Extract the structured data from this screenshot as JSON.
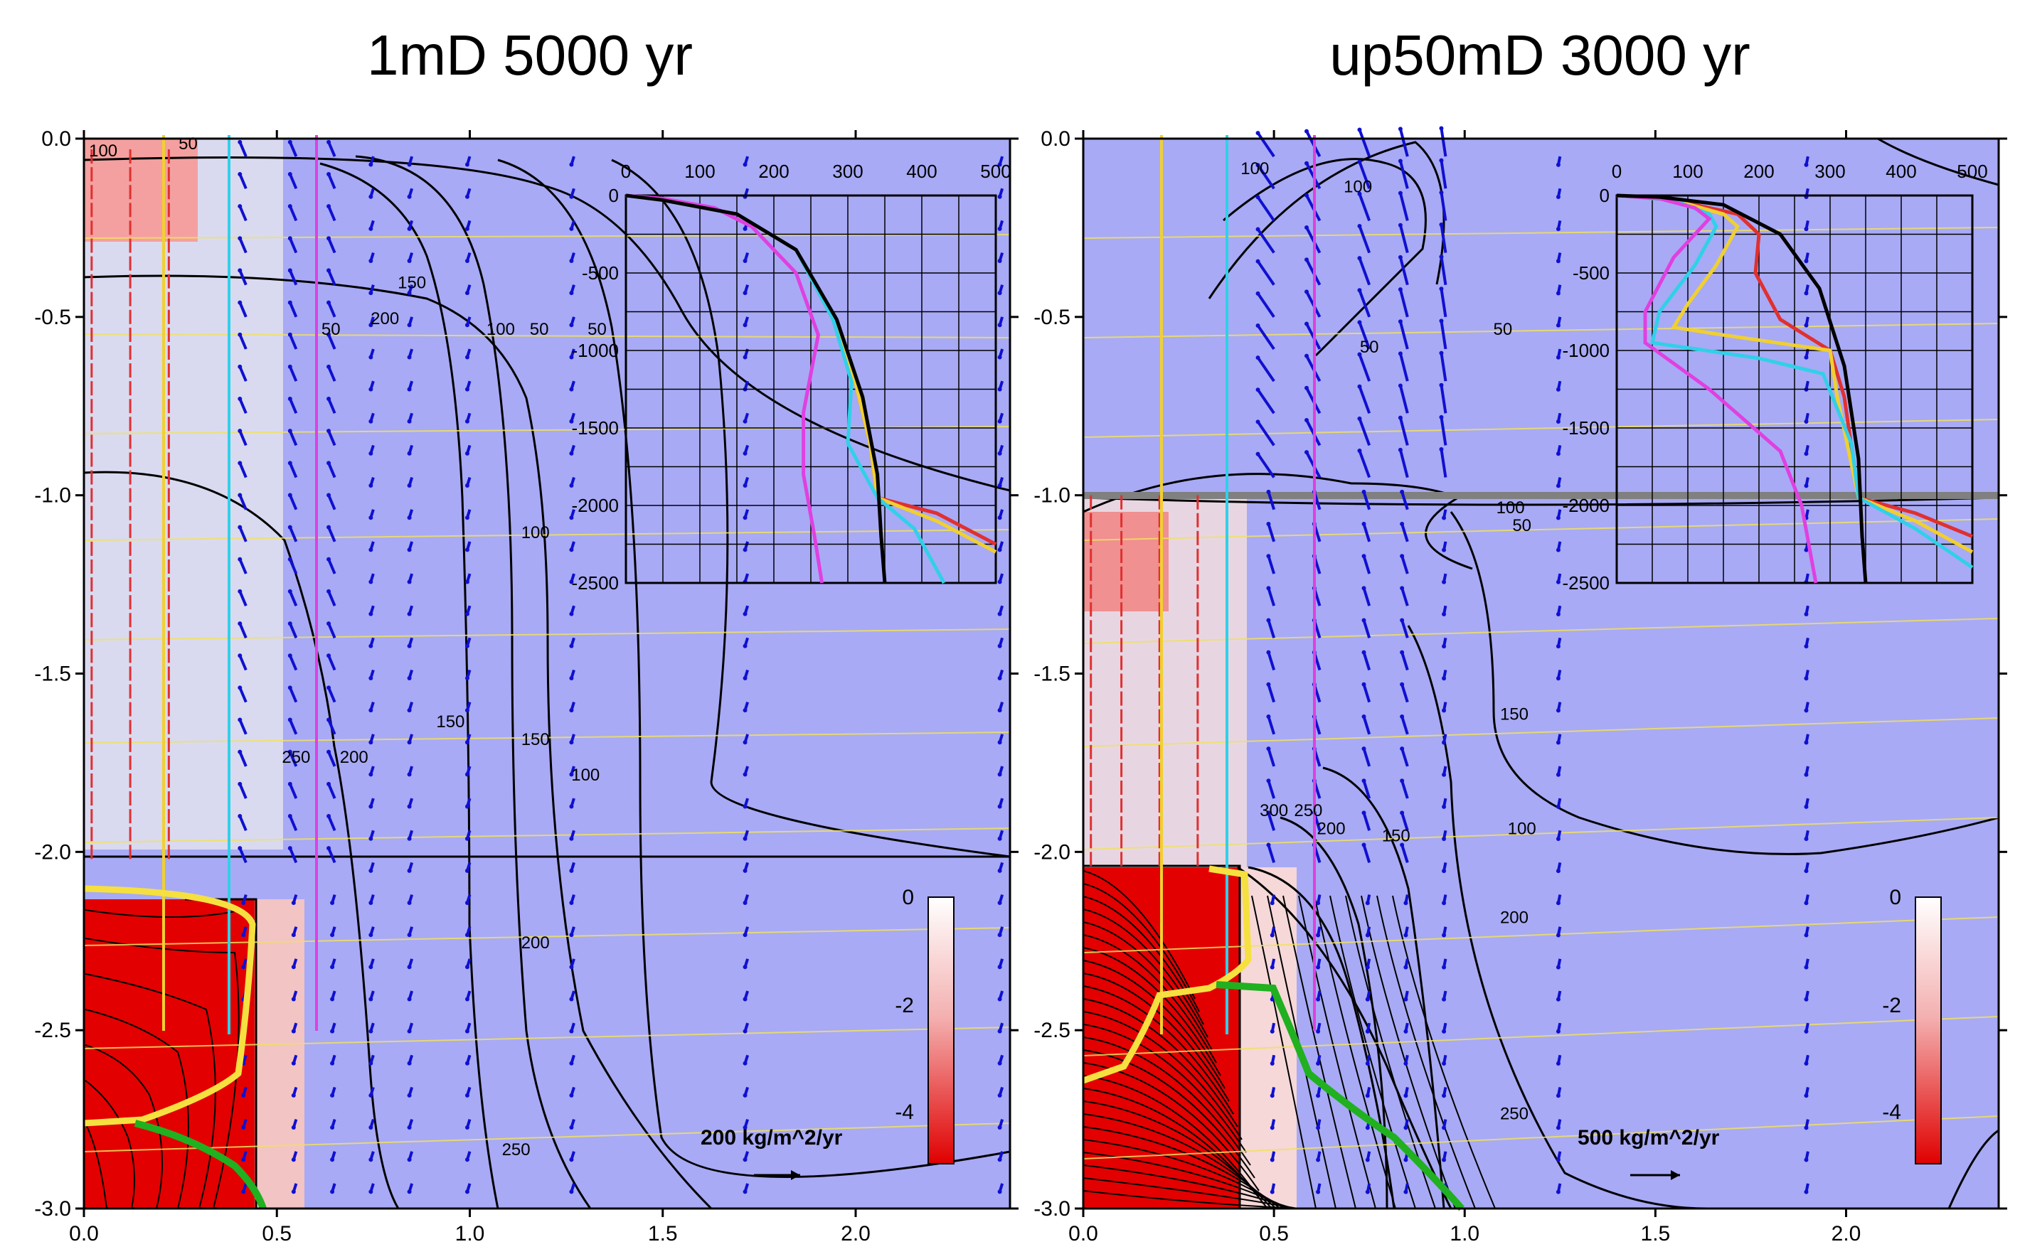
{
  "chart_data": [
    {
      "type": "heatmap",
      "title": "1mD 5000 yr",
      "xlim": [
        0,
        2.4
      ],
      "ylim": [
        -3.0,
        0.0
      ],
      "xticks": [
        "0.0",
        "0.5",
        "1.0",
        "1.5",
        "2.0"
      ],
      "yticks": [
        "0.0",
        "-0.5",
        "-1.0",
        "-1.5",
        "-2.0",
        "-2.5",
        "-3.0"
      ],
      "contour_labels": [
        {
          "text": "100",
          "x": 0.05,
          "y": -0.05
        },
        {
          "text": "50",
          "x": 0.27,
          "y": -0.03
        },
        {
          "text": "50",
          "x": 0.64,
          "y": -0.55
        },
        {
          "text": "150",
          "x": 0.85,
          "y": -0.42
        },
        {
          "text": "200",
          "x": 0.78,
          "y": -0.52
        },
        {
          "text": "100",
          "x": 1.08,
          "y": -0.55
        },
        {
          "text": "50",
          "x": 1.18,
          "y": -0.55
        },
        {
          "text": "50",
          "x": 1.33,
          "y": -0.55
        },
        {
          "text": "100",
          "x": 1.17,
          "y": -1.12
        },
        {
          "text": "150",
          "x": 0.95,
          "y": -1.65
        },
        {
          "text": "150",
          "x": 1.17,
          "y": -1.7
        },
        {
          "text": "100",
          "x": 1.3,
          "y": -1.8
        },
        {
          "text": "200",
          "x": 0.7,
          "y": -1.75
        },
        {
          "text": "250",
          "x": 0.55,
          "y": -1.75
        },
        {
          "text": "200",
          "x": 1.17,
          "y": -2.27
        },
        {
          "text": "250",
          "x": 1.12,
          "y": -2.85
        }
      ],
      "colorbar": {
        "ticks": [
          "0",
          "-2",
          "-4"
        ],
        "range": [
          -5,
          0
        ]
      },
      "vector_scale_label": "200 kg/m^2/yr",
      "inset": {
        "xticks": [
          "0",
          "100",
          "200",
          "300",
          "400",
          "500"
        ],
        "yticks": [
          "0",
          "-500",
          "-1000",
          "-1500",
          "-2000",
          "-2500"
        ],
        "xlim": [
          0,
          500
        ],
        "ylim": [
          -2500,
          0
        ],
        "series": [
          {
            "name": "red",
            "color": "#e03030",
            "points": [
              [
                0,
                0
              ],
              [
                50,
                -30
              ],
              [
                150,
                -120
              ],
              [
                230,
                -350
              ],
              [
                280,
                -800
              ],
              [
                310,
                -1200
              ],
              [
                330,
                -1600
              ],
              [
                340,
                -1950
              ],
              [
                420,
                -2050
              ],
              [
                500,
                -2250
              ]
            ]
          },
          {
            "name": "yellow",
            "color": "#f0d030",
            "points": [
              [
                0,
                0
              ],
              [
                50,
                -30
              ],
              [
                150,
                -120
              ],
              [
                230,
                -350
              ],
              [
                280,
                -800
              ],
              [
                310,
                -1200
              ],
              [
                330,
                -1600
              ],
              [
                340,
                -1950
              ],
              [
                420,
                -2100
              ],
              [
                500,
                -2300
              ]
            ]
          },
          {
            "name": "cyan",
            "color": "#30d0e8",
            "points": [
              [
                0,
                0
              ],
              [
                50,
                -30
              ],
              [
                150,
                -120
              ],
              [
                230,
                -350
              ],
              [
                280,
                -800
              ],
              [
                305,
                -1200
              ],
              [
                300,
                -1600
              ],
              [
                340,
                -1950
              ],
              [
                390,
                -2150
              ],
              [
                430,
                -2500
              ]
            ]
          },
          {
            "name": "magenta",
            "color": "#e040e0",
            "points": [
              [
                0,
                0
              ],
              [
                50,
                -20
              ],
              [
                120,
                -80
              ],
              [
                170,
                -200
              ],
              [
                230,
                -500
              ],
              [
                260,
                -900
              ],
              [
                240,
                -1400
              ],
              [
                240,
                -1800
              ],
              [
                255,
                -2200
              ],
              [
                265,
                -2500
              ]
            ]
          },
          {
            "name": "black",
            "color": "#000000",
            "points": [
              [
                0,
                0
              ],
              [
                50,
                -30
              ],
              [
                150,
                -120
              ],
              [
                230,
                -350
              ],
              [
                285,
                -800
              ],
              [
                320,
                -1300
              ],
              [
                340,
                -1800
              ],
              [
                345,
                -2200
              ],
              [
                350,
                -2500
              ]
            ]
          }
        ]
      }
    },
    {
      "type": "heatmap",
      "title": "up50mD 3000 yr",
      "xlim": [
        0,
        2.4
      ],
      "ylim": [
        -3.0,
        0.0
      ],
      "xticks": [
        "0.0",
        "0.5",
        "1.0",
        "1.5",
        "2.0"
      ],
      "yticks": [
        "0.0",
        "-0.5",
        "-1.0",
        "-1.5",
        "-2.0",
        "-2.5",
        "-3.0"
      ],
      "contour_labels": [
        {
          "text": "100",
          "x": 0.45,
          "y": -0.1
        },
        {
          "text": "100",
          "x": 0.72,
          "y": -0.15
        },
        {
          "text": "50",
          "x": 1.1,
          "y": -0.55
        },
        {
          "text": "50",
          "x": 0.75,
          "y": -0.6
        },
        {
          "text": "100",
          "x": 1.12,
          "y": -1.05
        },
        {
          "text": "50",
          "x": 1.15,
          "y": -1.1
        },
        {
          "text": "150",
          "x": 1.13,
          "y": -1.63
        },
        {
          "text": "100",
          "x": 1.15,
          "y": -1.95
        },
        {
          "text": "200",
          "x": 1.13,
          "y": -2.2
        },
        {
          "text": "250",
          "x": 1.13,
          "y": -2.75
        },
        {
          "text": "150",
          "x": 0.82,
          "y": -1.97
        },
        {
          "text": "200",
          "x": 0.65,
          "y": -1.95
        },
        {
          "text": "250",
          "x": 0.59,
          "y": -1.9
        },
        {
          "text": "300",
          "x": 0.5,
          "y": -1.9
        }
      ],
      "colorbar": {
        "ticks": [
          "0",
          "-2",
          "-4"
        ],
        "range": [
          -5,
          0
        ]
      },
      "vector_scale_label": "500 kg/m^2/yr",
      "inset": {
        "xticks": [
          "0",
          "100",
          "200",
          "300",
          "400",
          "500"
        ],
        "yticks": [
          "0",
          "-500",
          "-1000",
          "-1500",
          "-2000",
          "-2500"
        ],
        "xlim": [
          0,
          500
        ],
        "ylim": [
          -2500,
          0
        ],
        "series": [
          {
            "name": "red",
            "color": "#e03030",
            "points": [
              [
                0,
                0
              ],
              [
                80,
                -30
              ],
              [
                170,
                -120
              ],
              [
                200,
                -250
              ],
              [
                195,
                -500
              ],
              [
                230,
                -800
              ],
              [
                300,
                -1000
              ],
              [
                320,
                -1300
              ],
              [
                340,
                -1950
              ],
              [
                420,
                -2050
              ],
              [
                500,
                -2200
              ]
            ]
          },
          {
            "name": "yellow",
            "color": "#f0d030",
            "points": [
              [
                0,
                0
              ],
              [
                80,
                -30
              ],
              [
                150,
                -120
              ],
              [
                170,
                -200
              ],
              [
                140,
                -450
              ],
              [
                100,
                -700
              ],
              [
                80,
                -850
              ],
              [
                150,
                -900
              ],
              [
                300,
                -1000
              ],
              [
                310,
                -1300
              ],
              [
                340,
                -1950
              ],
              [
                420,
                -2100
              ],
              [
                500,
                -2300
              ]
            ]
          },
          {
            "name": "cyan",
            "color": "#30d0e8",
            "points": [
              [
                0,
                0
              ],
              [
                80,
                -30
              ],
              [
                130,
                -120
              ],
              [
                140,
                -200
              ],
              [
                110,
                -450
              ],
              [
                60,
                -750
              ],
              [
                50,
                -950
              ],
              [
                200,
                -1050
              ],
              [
                290,
                -1150
              ],
              [
                330,
                -1600
              ],
              [
                340,
                -1950
              ],
              [
                420,
                -2150
              ],
              [
                500,
                -2400
              ]
            ]
          },
          {
            "name": "magenta",
            "color": "#e040e0",
            "points": [
              [
                0,
                0
              ],
              [
                60,
                -20
              ],
              [
                110,
                -80
              ],
              [
                130,
                -150
              ],
              [
                80,
                -400
              ],
              [
                40,
                -750
              ],
              [
                40,
                -950
              ],
              [
                130,
                -1250
              ],
              [
                230,
                -1650
              ],
              [
                260,
                -2000
              ],
              [
                280,
                -2500
              ]
            ]
          },
          {
            "name": "black",
            "color": "#000000",
            "points": [
              [
                0,
                0
              ],
              [
                60,
                -10
              ],
              [
                150,
                -60
              ],
              [
                230,
                -250
              ],
              [
                285,
                -600
              ],
              [
                320,
                -1100
              ],
              [
                340,
                -1700
              ],
              [
                345,
                -2200
              ],
              [
                350,
                -2500
              ]
            ]
          }
        ]
      }
    }
  ]
}
